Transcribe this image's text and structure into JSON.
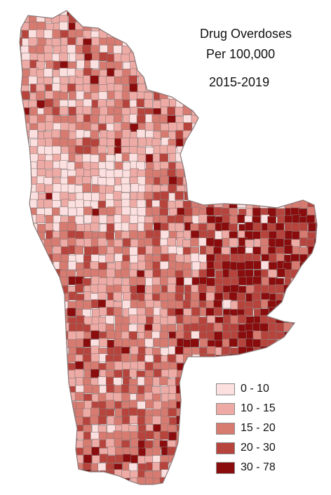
{
  "title": {
    "line1": "Drug Overdoses",
    "line2": "Per 100,000",
    "line3": "2015-2019"
  },
  "legend": [
    {
      "label": "0 - 10",
      "color": "#fbe0df"
    },
    {
      "label": "10 - 15",
      "color": "#eeaaa4"
    },
    {
      "label": "15 - 20",
      "color": "#d77b71"
    },
    {
      "label": "20 - 30",
      "color": "#b7443c"
    },
    {
      "label": "30 - 78",
      "color": "#8a0c0c"
    }
  ],
  "colors": {
    "border": "#8a7878",
    "background": "#ffffff"
  }
}
